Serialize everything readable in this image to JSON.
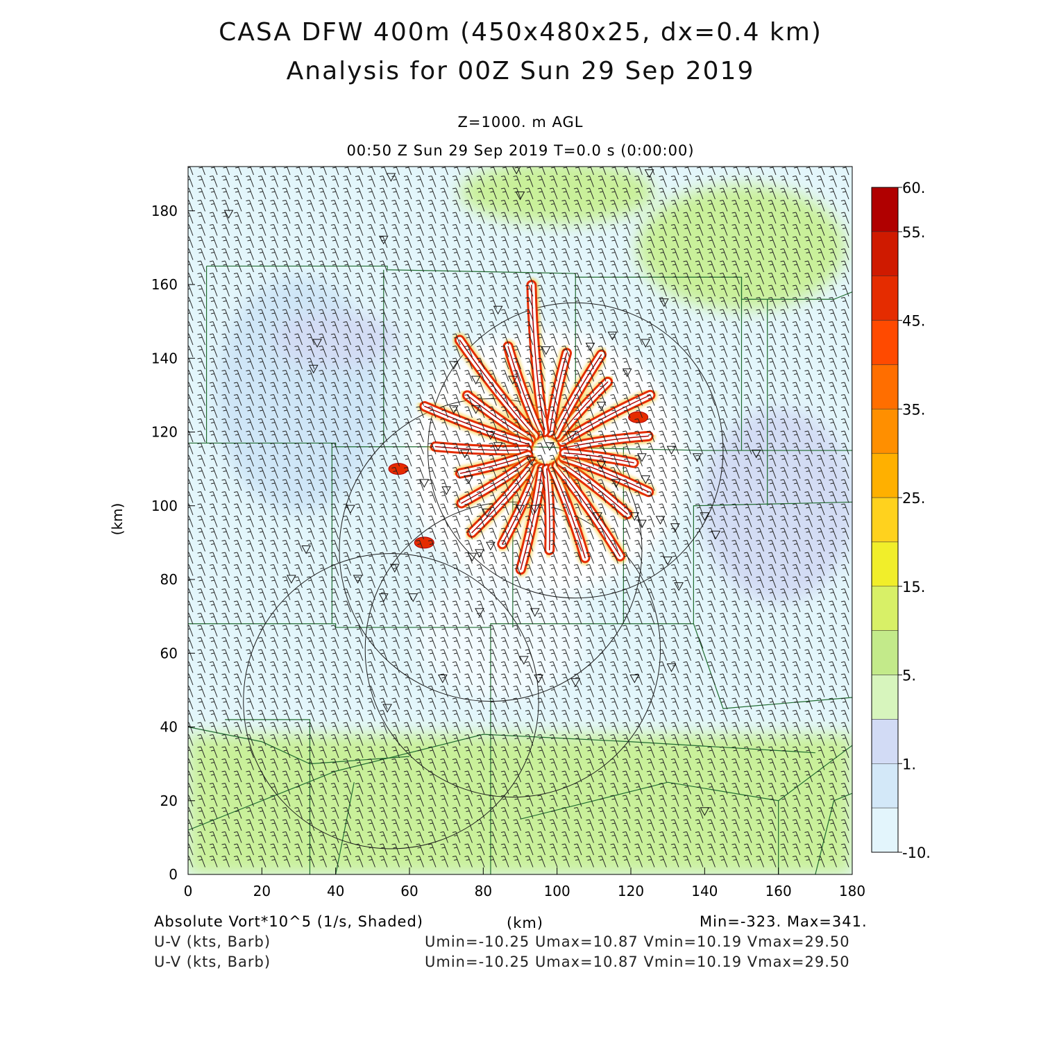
{
  "header": {
    "title_line1": "CASA DFW 400m (450x480x25, dx=0.4 km)",
    "title_line2": "Analysis for 00Z Sun 29 Sep 2019",
    "level": "Z=1000. m AGL",
    "time": "00:50 Z Sun 29 Sep 2019    T=0.0 s (0:00:00)"
  },
  "footer": {
    "field_label": "Absolute Vort*10^5 (1/s, Shaded)",
    "x_unit": "(km)",
    "minmax": "Min=-323. Max=341.",
    "barb1_label": "U-V (kts, Barb)",
    "barb1_stats": "Umin=-10.25 Umax=10.87 Vmin=10.19 Vmax=29.50",
    "barb2_label": "U-V (kts, Barb)",
    "barb2_stats": "Umin=-10.25 Umax=10.87 Vmin=10.19 Vmax=29.50"
  },
  "colors": {
    "low_band": "#c9f09a",
    "background": "#e3f6fb",
    "light_blue": "#cfe6f7",
    "lavender": "#d3dcf4",
    "contour": "#a80000",
    "county_lines": "#1f6b2f"
  },
  "chart_data": {
    "type": "heatmap",
    "title": "Absolute Vort*10^5 (1/s, Shaded)",
    "xlabel": "(km)",
    "ylabel": "(km)",
    "xlim": [
      0,
      180
    ],
    "ylim": [
      0,
      192
    ],
    "x_ticks": [
      0,
      20,
      40,
      60,
      80,
      100,
      120,
      140,
      160,
      180
    ],
    "y_ticks": [
      0,
      20,
      40,
      60,
      80,
      100,
      120,
      140,
      160,
      180
    ],
    "colorbar": {
      "tick_labels": [
        "60.",
        "55.",
        "45.",
        "35.",
        "25.",
        "15.",
        "5.",
        "1.",
        "-10."
      ],
      "colors": [
        "#b00000",
        "#cf1a00",
        "#e52c00",
        "#ff4a00",
        "#ff6e00",
        "#ff8f00",
        "#ffb000",
        "#ffd21e",
        "#f1ee2a",
        "#d8f067",
        "#c3ea8a",
        "#d7f5bd",
        "#d2dbf5",
        "#d3e8f8",
        "#e3f5fc"
      ]
    },
    "radar_rings": [
      {
        "cx": 105,
        "cy": 115,
        "r": 40
      },
      {
        "cx": 82,
        "cy": 88,
        "r": 41
      },
      {
        "cx": 88,
        "cy": 61,
        "r": 40
      },
      {
        "cx": 55,
        "cy": 47,
        "r": 40
      }
    ],
    "streaks": {
      "center": [
        97,
        115
      ],
      "angles_deg": [
        8,
        28,
        48,
        60,
        78,
        95,
        110,
        128,
        145,
        160,
        178,
        195,
        212,
        228,
        245,
        258,
        272,
        290,
        305,
        322,
        338,
        352
      ],
      "lengths_km": [
        28,
        32,
        25,
        30,
        27,
        45,
        30,
        38,
        26,
        35,
        30,
        24,
        27,
        30,
        28,
        33,
        27,
        31,
        35,
        28,
        30,
        24
      ]
    },
    "max_value": 341,
    "min_value": -323
  }
}
